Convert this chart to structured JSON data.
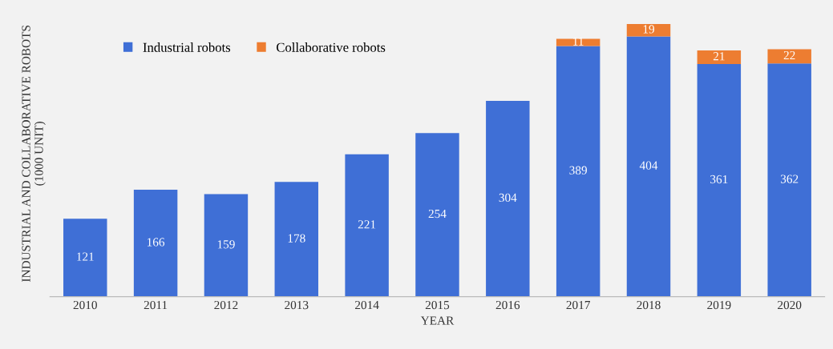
{
  "chart_data": {
    "type": "bar",
    "stacked": true,
    "xlabel": "YEAR",
    "ylabel": "INDUSTRIAL AND COLLABORATIVE ROBOTS\n(1000 UNIT)",
    "categories": [
      "2010",
      "2011",
      "2012",
      "2013",
      "2014",
      "2015",
      "2016",
      "2017",
      "2018",
      "2019",
      "2020"
    ],
    "series": [
      {
        "name": "Industrial robots",
        "color": "#3f6fd6",
        "values": [
          121,
          166,
          159,
          178,
          221,
          254,
          304,
          389,
          404,
          361,
          362
        ]
      },
      {
        "name": "Collaborative robots",
        "color": "#ed7d31",
        "values": [
          null,
          null,
          null,
          null,
          null,
          null,
          null,
          11,
          19,
          21,
          22
        ]
      }
    ],
    "data_labels": true,
    "legend": "top left",
    "grid": false,
    "tick_labels": "x"
  }
}
